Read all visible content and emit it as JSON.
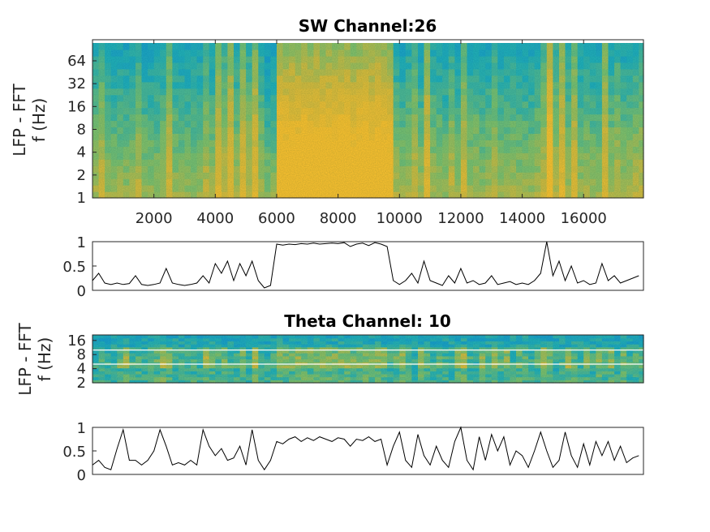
{
  "chart_data": [
    {
      "type": "heatmap",
      "title": "SW Channel:26",
      "ylabel_lines": [
        "LFP - FFT",
        "f (Hz)"
      ],
      "yscale": "log2",
      "ylim": [
        1,
        110
      ],
      "xlim": [
        0,
        17950
      ],
      "yticks": [
        1,
        2,
        4,
        8,
        16,
        32,
        64
      ],
      "xticks": [
        2000,
        4000,
        6000,
        8000,
        10000,
        12000,
        14000,
        16000
      ],
      "colormap": [
        "#0a6fd6",
        "#1596cf",
        "#22b0b4",
        "#7cc06c",
        "#d4bb3e",
        "#f9c030"
      ],
      "note_power_driver": "sw_ratio"
    },
    {
      "type": "line",
      "name": "sw_ratio",
      "ylim": [
        0,
        1
      ],
      "xlim": [
        0,
        17950
      ],
      "yticks": [
        "0",
        "0.5",
        "1"
      ],
      "x_start": 0,
      "x_step": 200,
      "values": [
        0.2,
        0.35,
        0.15,
        0.12,
        0.15,
        0.12,
        0.14,
        0.3,
        0.12,
        0.1,
        0.12,
        0.15,
        0.45,
        0.15,
        0.12,
        0.1,
        0.12,
        0.15,
        0.3,
        0.15,
        0.55,
        0.35,
        0.6,
        0.2,
        0.55,
        0.3,
        0.6,
        0.2,
        0.05,
        0.1,
        0.95,
        0.93,
        0.95,
        0.94,
        0.96,
        0.95,
        0.97,
        0.95,
        0.96,
        0.97,
        0.96,
        0.98,
        0.9,
        0.95,
        0.97,
        0.92,
        0.98,
        0.95,
        0.9,
        0.2,
        0.12,
        0.2,
        0.35,
        0.15,
        0.6,
        0.2,
        0.15,
        0.1,
        0.3,
        0.15,
        0.45,
        0.15,
        0.2,
        0.12,
        0.15,
        0.3,
        0.12,
        0.15,
        0.18,
        0.12,
        0.15,
        0.12,
        0.2,
        0.35,
        1.0,
        0.3,
        0.6,
        0.2,
        0.5,
        0.15,
        0.2,
        0.12,
        0.15,
        0.55,
        0.2,
        0.3,
        0.15,
        0.2,
        0.25,
        0.3
      ]
    },
    {
      "type": "heatmap",
      "title": "Theta Channel: 10",
      "ylabel_lines": [
        "LFP - FFT",
        "f (Hz)"
      ],
      "yscale": "log2",
      "ylim": [
        2,
        21
      ],
      "xlim": [
        0,
        17950
      ],
      "yticks": [
        2,
        4,
        8,
        16
      ],
      "band_lines_hz": [
        5,
        10
      ],
      "colormap": [
        "#0a6fd6",
        "#1596cf",
        "#22b0b4",
        "#7cc06c",
        "#d4bb3e",
        "#f9c030"
      ],
      "note_power_driver": "theta_ratio"
    },
    {
      "type": "line",
      "name": "theta_ratio",
      "ylim": [
        0,
        1
      ],
      "xlim": [
        0,
        17950
      ],
      "yticks": [
        "0",
        "0.5",
        "1"
      ],
      "x_start": 0,
      "x_step": 200,
      "values": [
        0.2,
        0.3,
        0.15,
        0.1,
        0.55,
        0.95,
        0.3,
        0.3,
        0.2,
        0.3,
        0.5,
        0.95,
        0.6,
        0.2,
        0.25,
        0.2,
        0.3,
        0.2,
        0.95,
        0.6,
        0.4,
        0.55,
        0.3,
        0.35,
        0.6,
        0.2,
        0.95,
        0.3,
        0.1,
        0.3,
        0.7,
        0.65,
        0.75,
        0.8,
        0.7,
        0.78,
        0.72,
        0.8,
        0.75,
        0.7,
        0.78,
        0.75,
        0.6,
        0.75,
        0.72,
        0.8,
        0.7,
        0.75,
        0.2,
        0.6,
        0.9,
        0.3,
        0.15,
        0.85,
        0.4,
        0.2,
        0.6,
        0.3,
        0.15,
        0.7,
        1.0,
        0.3,
        0.1,
        0.8,
        0.3,
        0.85,
        0.5,
        0.8,
        0.2,
        0.5,
        0.4,
        0.15,
        0.5,
        0.9,
        0.5,
        0.15,
        0.3,
        0.9,
        0.4,
        0.15,
        0.65,
        0.2,
        0.7,
        0.4,
        0.7,
        0.3,
        0.6,
        0.25,
        0.35,
        0.4
      ]
    }
  ]
}
